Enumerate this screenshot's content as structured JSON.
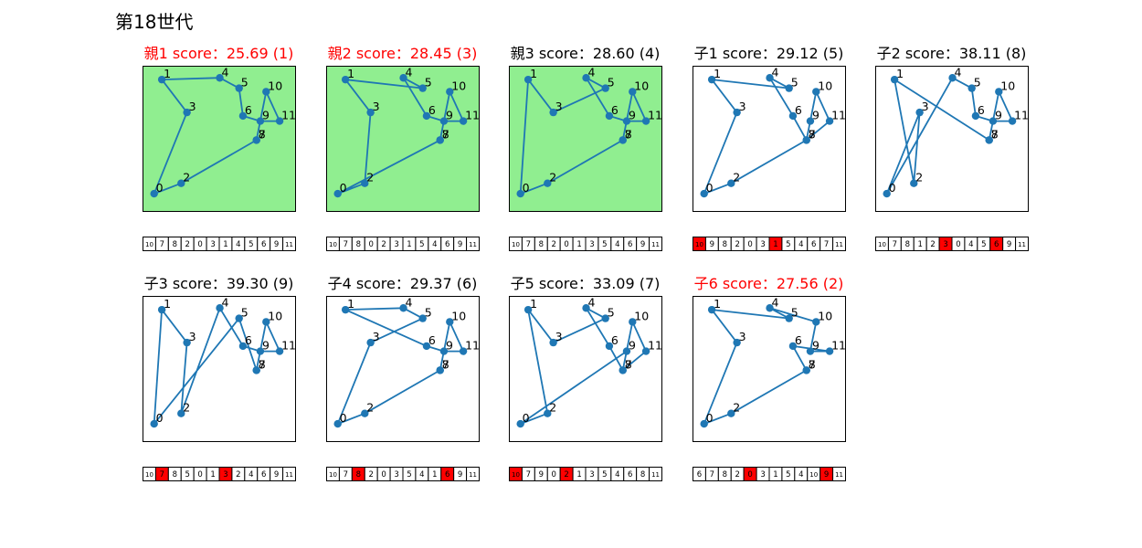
{
  "title": "第18世代",
  "colors": {
    "route": "#1f77b4",
    "point": "#1f77b4",
    "parent_bg": "#90ee90",
    "highlight_title": "#ff0000",
    "normal_title": "#000000",
    "gene_mut": "#ff0000"
  },
  "cities": [
    {
      "id": 0,
      "x": 1.9,
      "y": 1.8
    },
    {
      "id": 1,
      "x": 2.3,
      "y": 8.4
    },
    {
      "id": 2,
      "x": 3.3,
      "y": 2.4
    },
    {
      "id": 3,
      "x": 3.6,
      "y": 6.5
    },
    {
      "id": 4,
      "x": 5.3,
      "y": 8.5
    },
    {
      "id": 5,
      "x": 6.3,
      "y": 7.9
    },
    {
      "id": 6,
      "x": 6.5,
      "y": 6.3
    },
    {
      "id": 7,
      "x": 7.2,
      "y": 4.9
    },
    {
      "id": 8,
      "x": 7.2,
      "y": 4.9
    },
    {
      "id": 9,
      "x": 7.4,
      "y": 6.0
    },
    {
      "id": 10,
      "x": 7.7,
      "y": 7.7
    },
    {
      "id": 11,
      "x": 8.4,
      "y": 6.0
    }
  ],
  "chart_data": [
    {
      "type": "scatter",
      "title": "親1 score：25.69 (1)",
      "highlight": true,
      "parent": true,
      "route": [
        10,
        7,
        8,
        2,
        0,
        3,
        1,
        4,
        5,
        6,
        9,
        11
      ],
      "mutated": []
    },
    {
      "type": "scatter",
      "title": "親2 score：28.45 (3)",
      "highlight": true,
      "parent": true,
      "route": [
        10,
        7,
        8,
        0,
        2,
        3,
        1,
        5,
        4,
        6,
        9,
        11
      ],
      "mutated": []
    },
    {
      "type": "scatter",
      "title": "親3 score：28.60 (4)",
      "highlight": false,
      "parent": true,
      "route": [
        10,
        7,
        8,
        2,
        0,
        1,
        3,
        5,
        4,
        6,
        9,
        11
      ],
      "mutated": []
    },
    {
      "type": "scatter",
      "title": "子1 score：29.12 (5)",
      "highlight": false,
      "parent": false,
      "route": [
        10,
        9,
        8,
        2,
        0,
        3,
        1,
        5,
        4,
        6,
        7,
        11
      ],
      "mutated": [
        0,
        6
      ]
    },
    {
      "type": "scatter",
      "title": "子2 score：38.11 (8)",
      "highlight": false,
      "parent": false,
      "route": [
        10,
        7,
        8,
        1,
        2,
        3,
        0,
        4,
        5,
        6,
        9,
        11
      ],
      "mutated": [
        5,
        9
      ]
    },
    {
      "type": "scatter",
      "title": "子3 score：39.30 (9)",
      "highlight": false,
      "parent": false,
      "route": [
        10,
        7,
        8,
        5,
        0,
        1,
        3,
        2,
        4,
        6,
        9,
        11
      ],
      "mutated": [
        1,
        6
      ]
    },
    {
      "type": "scatter",
      "title": "子4 score：29.37 (6)",
      "highlight": false,
      "parent": false,
      "route": [
        10,
        7,
        8,
        2,
        0,
        3,
        5,
        4,
        1,
        6,
        9,
        11
      ],
      "mutated": [
        2,
        9
      ]
    },
    {
      "type": "scatter",
      "title": "子5 score：33.09 (7)",
      "highlight": false,
      "parent": false,
      "route": [
        10,
        7,
        9,
        0,
        2,
        1,
        3,
        5,
        4,
        6,
        8,
        11
      ],
      "mutated": [
        0,
        4
      ]
    },
    {
      "type": "scatter",
      "title": "子6 score：27.56 (2)",
      "highlight": true,
      "parent": false,
      "route": [
        6,
        7,
        8,
        2,
        0,
        3,
        1,
        5,
        4,
        10,
        9,
        11
      ],
      "mutated": [
        4,
        10
      ]
    }
  ]
}
